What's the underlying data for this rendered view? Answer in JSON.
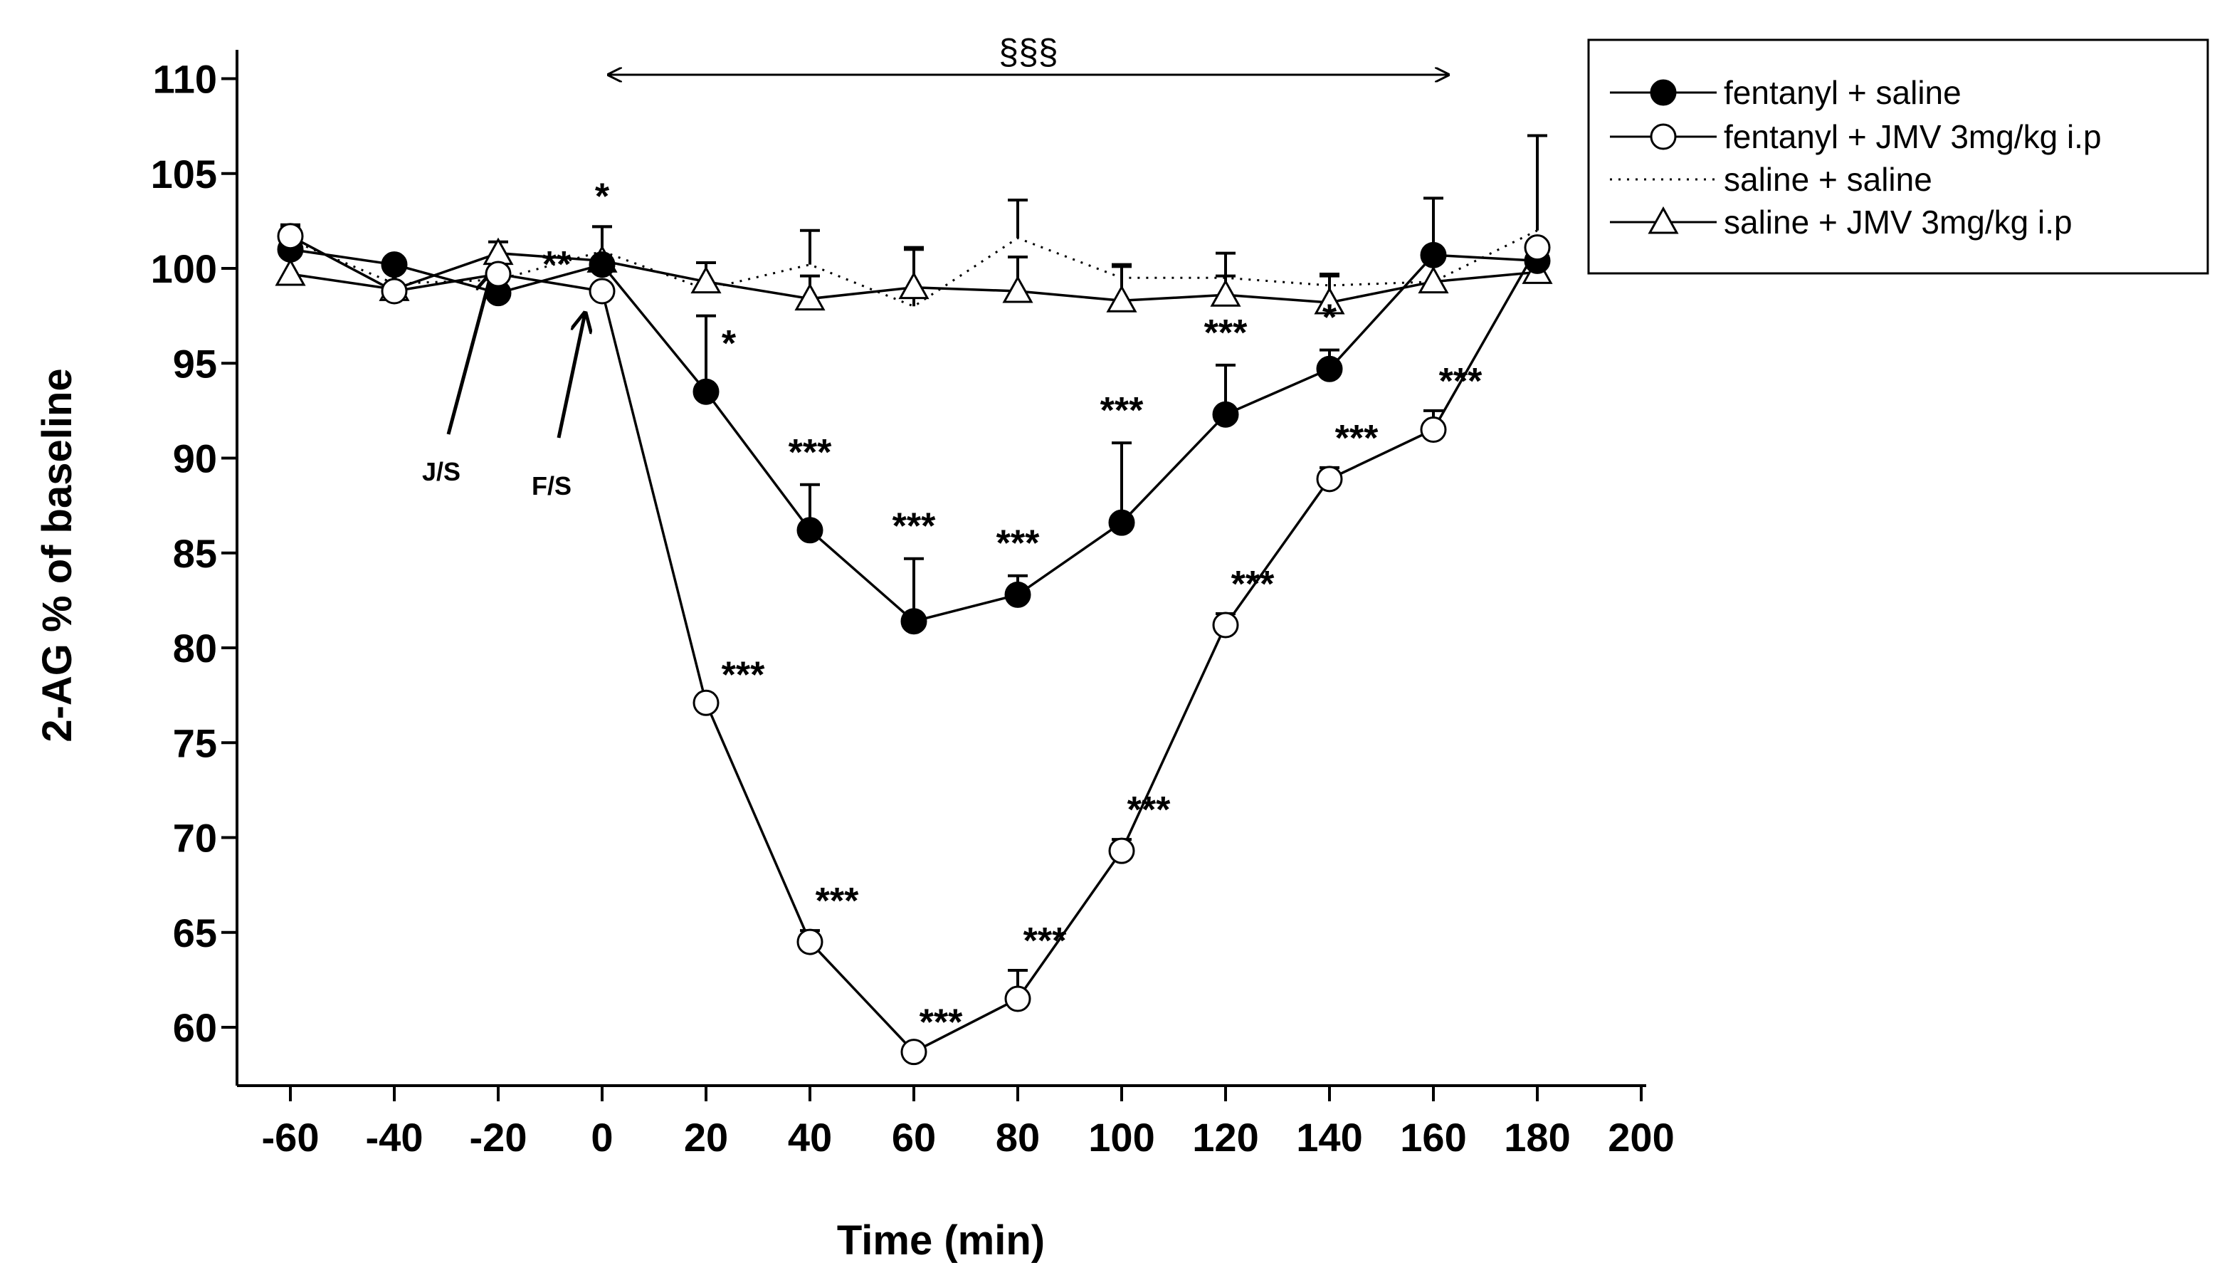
{
  "chart_data": {
    "type": "line",
    "title": "",
    "xlabel": "Time (min)",
    "ylabel": "2-AG % of baseline",
    "xlim": [
      -70,
      200
    ],
    "ylim": [
      57,
      110
    ],
    "x_ticks": [
      -60,
      -40,
      -20,
      0,
      20,
      40,
      60,
      80,
      100,
      120,
      140,
      160,
      180,
      200
    ],
    "y_ticks": [
      60,
      65,
      70,
      75,
      80,
      85,
      90,
      95,
      100,
      105,
      110
    ],
    "x": [
      -60,
      -40,
      -20,
      0,
      20,
      40,
      60,
      80,
      100,
      120,
      140,
      160,
      180
    ],
    "series": [
      {
        "name": "fentanyl + saline",
        "marker": "filled-circle",
        "line": "solid",
        "values": [
          101.0,
          100.2,
          98.7,
          100.2,
          93.5,
          86.2,
          81.4,
          82.8,
          86.6,
          92.3,
          94.7,
          100.7,
          100.4
        ],
        "error": [
          1.3,
          0.3,
          0.0,
          2.0,
          4.0,
          2.4,
          3.3,
          1.0,
          4.2,
          2.6,
          1.0,
          3.0,
          0.0
        ],
        "significance": [
          "",
          "",
          "",
          "*",
          "*",
          "***",
          "***",
          "***",
          "***",
          "***",
          "*",
          "",
          ""
        ]
      },
      {
        "name": "fentanyl + JMV 3mg/kg i.p",
        "marker": "open-circle",
        "line": "solid",
        "values": [
          101.7,
          98.8,
          99.7,
          98.8,
          77.1,
          64.5,
          58.7,
          61.5,
          69.3,
          81.2,
          88.9,
          91.5,
          101.1
        ],
        "error": [
          0.5,
          0.0,
          0.4,
          0.0,
          0.0,
          0.6,
          0.0,
          1.5,
          0.6,
          0.6,
          0.6,
          1.0,
          0.0
        ],
        "significance": [
          "",
          "",
          "",
          "**",
          "***",
          "***",
          "***",
          "***",
          "***",
          "***",
          "***",
          "***",
          ""
        ]
      },
      {
        "name": "saline + saline",
        "marker": "none",
        "line": "dotted",
        "values": [
          101.5,
          99.2,
          99.4,
          100.9,
          98.9,
          100.2,
          98.0,
          101.6,
          99.5,
          99.5,
          99.1,
          99.3,
          102.0
        ],
        "error": [
          0.5,
          0.0,
          0.0,
          1.3,
          0.0,
          1.8,
          3.0,
          2.0,
          0.7,
          1.3,
          0.6,
          0.0,
          5.0
        ],
        "significance": [
          "",
          "",
          "",
          "",
          "",
          "",
          "",
          "",
          "",
          "",
          "",
          "",
          ""
        ]
      },
      {
        "name": "saline + JMV 3mg/kg i.p",
        "marker": "open-triangle",
        "line": "solid",
        "values": [
          99.7,
          98.9,
          100.8,
          100.4,
          99.3,
          98.4,
          99.0,
          98.8,
          98.3,
          98.6,
          98.2,
          99.3,
          99.8
        ],
        "error": [
          0.0,
          0.0,
          0.6,
          0.0,
          1.0,
          1.2,
          2.1,
          1.8,
          1.8,
          1.0,
          1.4,
          0.0,
          0.0
        ],
        "significance": [
          "",
          "",
          "",
          "",
          "",
          "",
          "",
          "",
          "",
          "",
          "",
          "",
          ""
        ]
      }
    ],
    "annotations": [
      {
        "text": "J/S",
        "x": -20,
        "description": "arrow marking J/S injection"
      },
      {
        "text": "F/S",
        "x": -3,
        "description": "arrow marking F/S injection"
      },
      {
        "text": "§§§",
        "x_range": [
          0,
          163
        ],
        "description": "double-headed arrow over period"
      }
    ],
    "legend_position": "top-right",
    "grid": false
  }
}
